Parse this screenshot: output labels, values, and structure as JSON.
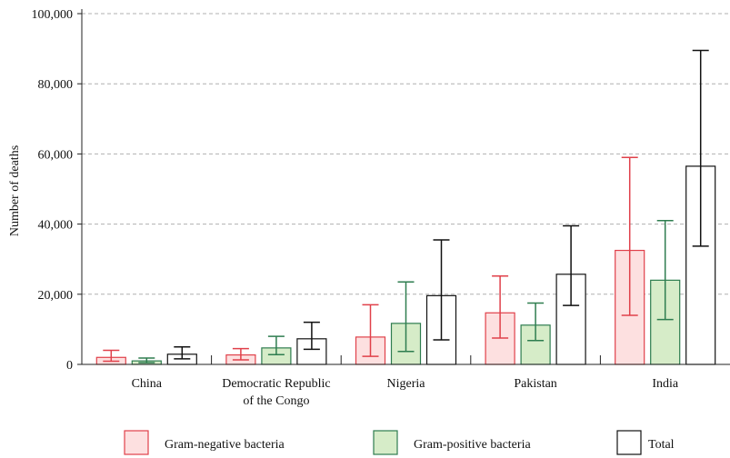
{
  "chart_data": {
    "type": "bar",
    "title": "",
    "xlabel": "",
    "ylabel": "Number of deaths",
    "ylim": [
      0,
      100000
    ],
    "yticks": [
      {
        "value": 0,
        "label": "0"
      },
      {
        "value": 20000,
        "label": "20,000"
      },
      {
        "value": 40000,
        "label": "40,000"
      },
      {
        "value": 60000,
        "label": "60,000"
      },
      {
        "value": 80000,
        "label": "80,000"
      },
      {
        "value": 100000,
        "label": "100,000"
      }
    ],
    "grid": "horizontal dashed",
    "legend_position": "bottom",
    "categories": [
      {
        "label": [
          "China"
        ]
      },
      {
        "label": [
          "Democratic Republic",
          "of the Congo"
        ]
      },
      {
        "label": [
          "Nigeria"
        ]
      },
      {
        "label": [
          "Pakistan"
        ]
      },
      {
        "label": [
          "India"
        ]
      }
    ],
    "series": [
      {
        "name": "Gram-negative bacteria",
        "fill": "#fde0e0",
        "stroke": "#e0404a",
        "values": [
          2000,
          2700,
          7800,
          14700,
          32500
        ],
        "lower": [
          900,
          1300,
          2300,
          7500,
          14000
        ],
        "upper": [
          4000,
          4500,
          17000,
          25200,
          59000
        ]
      },
      {
        "name": "Gram-positive bacteria",
        "fill": "#d6ecc8",
        "stroke": "#2e7d4f",
        "values": [
          1000,
          4700,
          11700,
          11200,
          24000
        ],
        "lower": [
          500,
          2800,
          3700,
          6800,
          12800
        ],
        "upper": [
          1800,
          8000,
          23500,
          17500,
          41000
        ]
      },
      {
        "name": "Total",
        "fill": "#ffffff",
        "stroke": "#111111",
        "values": [
          2900,
          7300,
          19600,
          25700,
          56500
        ],
        "lower": [
          1600,
          4300,
          7000,
          16800,
          33700
        ],
        "upper": [
          5000,
          12000,
          35500,
          39500,
          89500
        ]
      }
    ]
  }
}
